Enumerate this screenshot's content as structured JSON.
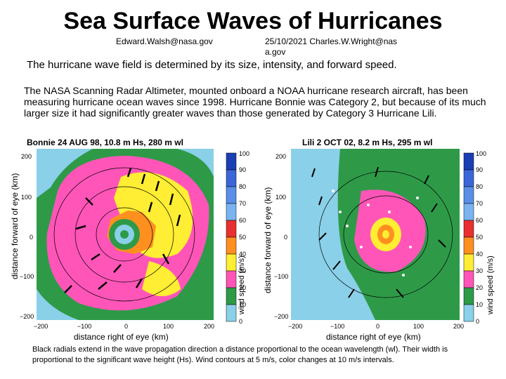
{
  "header": {
    "title": "Sea Surface Waves of Hurricanes",
    "author1": "Edward.Walsh@nasa.gov",
    "date_author2": "25/10/2021 Charles.W.Wright@nas a.gov"
  },
  "intro": "The hurricane wave field is determined by its size, intensity, and forward speed.",
  "paragraph": "The NASA Scanning Radar Altimeter, mounted onboard a NOAA hurricane research aircraft, has been measuring hurricane ocean waves since 1998.  Hurricane Bonnie was Category 2, but because of its much larger size it had significantly greater waves than those generated by Category 3 Hurricane Lili.",
  "panels": [
    {
      "title": "Bonnie  24 AUG 98,  10.8 m Hs,  280 m wl",
      "ylabel": "distance forward of eye (km)",
      "xlabel": "distance right of eye (km)",
      "xticks": [
        "−200",
        "−100",
        "0",
        "100",
        "200"
      ],
      "yticks": [
        "200",
        "100",
        "0",
        "−100",
        "−200"
      ],
      "colorbar_label": "wind speed (m/s)",
      "colorbar_ticks": [
        "100",
        "90",
        "80",
        "70",
        "60",
        "50",
        "40",
        "30",
        "20",
        "10",
        "0"
      ]
    },
    {
      "title": "Lili  2 OCT 02,  8.2 m Hs,  295 m wl",
      "ylabel": "distance forward of eye (km)",
      "xlabel": "distance right of eye (km)",
      "xticks": [
        "−200",
        "−100",
        "0",
        "100",
        "200"
      ],
      "yticks": [
        "200",
        "100",
        "0",
        "−100",
        "−200"
      ],
      "colorbar_label": "wind speed (m/s)",
      "colorbar_ticks": [
        "100",
        "90",
        "80",
        "70",
        "60",
        "50",
        "40",
        "30",
        "20",
        "10",
        "0"
      ]
    }
  ],
  "colorbar_colors": [
    "#1a3fb5",
    "#3a66d8",
    "#5a8fe8",
    "#7ab4f0",
    "#e83030",
    "#ff9020",
    "#ffee33",
    "#ff55b8",
    "#2e9a48",
    "#8ad0e8"
  ],
  "caption": "Black radials extend in the wave propagation direction a distance proportional to the ocean wavelength (wl). Their width is proportional to the significant wave height (Hs).  Wind contours at 5  m/s, color changes at 10  m/s intervals."
}
